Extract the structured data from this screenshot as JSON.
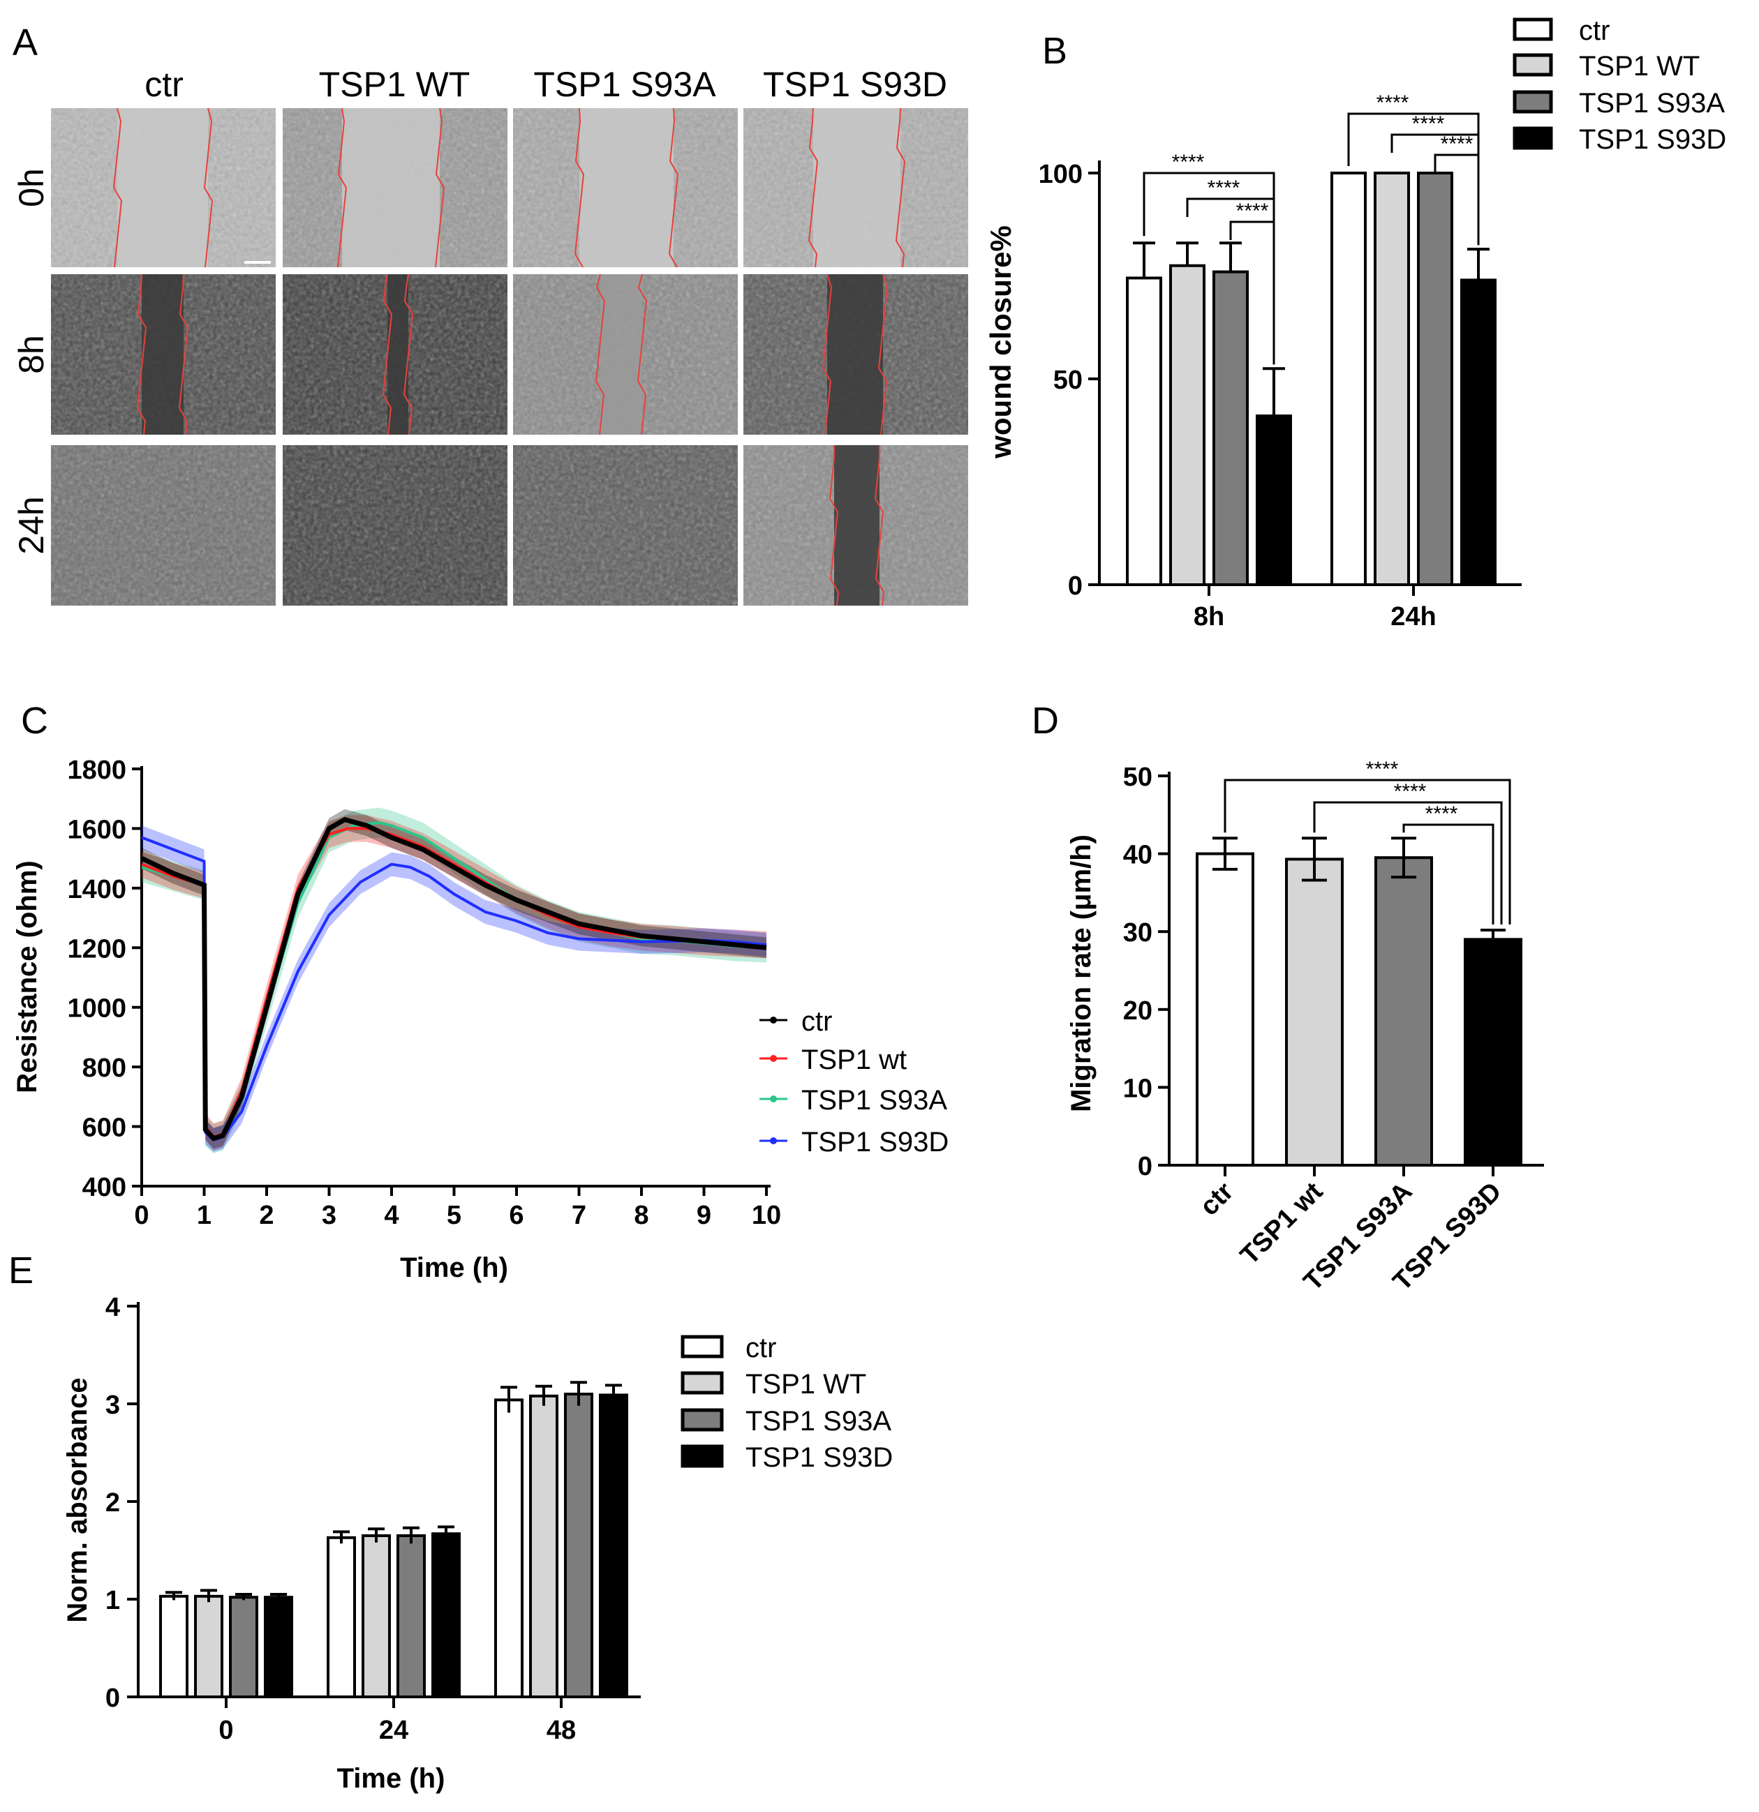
{
  "panels": {
    "A": {
      "letter": "A",
      "columns": [
        "ctr",
        "TSP1 WT",
        "TSP1 S93A",
        "TSP1 S93D"
      ],
      "rows": [
        "0h",
        "8h",
        "24h"
      ]
    },
    "B": {
      "letter": "B",
      "ylabel": "wound closure%",
      "yticks": [
        "0",
        "50",
        "100"
      ],
      "groups": [
        "8h",
        "24h"
      ],
      "legend": [
        "ctr",
        "TSP1 WT",
        "TSP1 S93A",
        "TSP1 S93D"
      ],
      "sig": "****"
    },
    "C": {
      "letter": "C",
      "xlabel": "Time (h)",
      "ylabel": "Resistance (ohm)",
      "yticks": [
        "400",
        "600",
        "800",
        "1000",
        "1200",
        "1400",
        "1600",
        "1800"
      ],
      "xticks": [
        "0",
        "1",
        "2",
        "3",
        "4",
        "5",
        "6",
        "7",
        "8",
        "9",
        "10"
      ],
      "legend": [
        "ctr",
        "TSP1 wt",
        "TSP1 S93A",
        "TSP1 S93D"
      ]
    },
    "D": {
      "letter": "D",
      "ylabel": "Migration rate (μm/h)",
      "yticks": [
        "0",
        "10",
        "20",
        "30",
        "40",
        "50"
      ],
      "categories": [
        "ctr",
        "TSP1 wt",
        "TSP1 S93A",
        "TSP1 S93D"
      ],
      "sig": "****"
    },
    "E": {
      "letter": "E",
      "xlabel": "Time (h)",
      "ylabel": "Norm. absorbance",
      "yticks": [
        "0",
        "1",
        "2",
        "3",
        "4"
      ],
      "groups": [
        "0",
        "24",
        "48"
      ],
      "legend": [
        "ctr",
        "TSP1 WT",
        "TSP1 S93A",
        "TSP1 S93D"
      ]
    }
  },
  "colors": {
    "ctr": "#ffffff",
    "wt": "#d6d6d6",
    "s93a": "#7d7d7d",
    "s93d": "#000000",
    "line_ctr": "#000000",
    "line_wt": "#ff2020",
    "line_s93a": "#2ec58c",
    "line_s93d": "#1f2fff",
    "wound_edge": "#e8413c"
  },
  "chart_data": [
    {
      "id": "B",
      "type": "bar",
      "categories": [
        "8h",
        "24h"
      ],
      "series": [
        {
          "name": "ctr",
          "values": [
            74.5,
            100
          ],
          "errors": [
            8.5,
            0
          ]
        },
        {
          "name": "TSP1 WT",
          "values": [
            77.5,
            100
          ],
          "errors": [
            5.5,
            0
          ]
        },
        {
          "name": "TSP1 S93A",
          "values": [
            76,
            100
          ],
          "errors": [
            7,
            0
          ]
        },
        {
          "name": "TSP1 S93D",
          "values": [
            41,
            74
          ],
          "errors": [
            11.5,
            7.5
          ]
        }
      ],
      "ylabel": "wound closure%",
      "ylim": [
        0,
        100
      ],
      "significance": [
        {
          "group": "8h",
          "from": "ctr",
          "to": "TSP1 S93D",
          "label": "****"
        },
        {
          "group": "8h",
          "from": "TSP1 WT",
          "to": "TSP1 S93D",
          "label": "****"
        },
        {
          "group": "8h",
          "from": "TSP1 S93A",
          "to": "TSP1 S93D",
          "label": "****"
        },
        {
          "group": "24h",
          "from": "ctr",
          "to": "TSP1 S93D",
          "label": "****"
        },
        {
          "group": "24h",
          "from": "TSP1 WT",
          "to": "TSP1 S93D",
          "label": "****"
        },
        {
          "group": "24h",
          "from": "TSP1 S93A",
          "to": "TSP1 S93D",
          "label": "****"
        }
      ]
    },
    {
      "id": "C",
      "type": "line",
      "xlabel": "Time (h)",
      "ylabel": "Resistance (ohm)",
      "xlim": [
        0,
        10
      ],
      "ylim": [
        400,
        1800
      ],
      "series": [
        {
          "name": "ctr",
          "x": [
            0,
            0.5,
            1.0,
            1.02,
            1.15,
            1.3,
            1.6,
            2.0,
            2.5,
            3.0,
            3.25,
            3.6,
            4.0,
            4.5,
            5.0,
            5.5,
            6.0,
            6.5,
            7.0,
            7.5,
            8.0,
            8.5,
            9.0,
            9.5,
            10.0
          ],
          "y": [
            1500,
            1450,
            1410,
            590,
            560,
            570,
            700,
            1000,
            1380,
            1600,
            1630,
            1610,
            1570,
            1530,
            1470,
            1410,
            1360,
            1320,
            1280,
            1260,
            1240,
            1230,
            1220,
            1210,
            1200
          ],
          "band": 35
        },
        {
          "name": "TSP1 wt",
          "x": [
            0,
            0.5,
            1.0,
            1.02,
            1.15,
            1.3,
            1.6,
            2.0,
            2.5,
            3.0,
            3.3,
            3.6,
            4.0,
            4.5,
            5.0,
            5.5,
            6.0,
            6.5,
            7.0,
            7.5,
            8.0,
            8.5,
            9.0,
            9.5,
            10.0
          ],
          "y": [
            1480,
            1440,
            1410,
            600,
            565,
            575,
            720,
            1030,
            1400,
            1580,
            1600,
            1600,
            1580,
            1540,
            1480,
            1420,
            1360,
            1310,
            1270,
            1250,
            1235,
            1228,
            1220,
            1215,
            1210
          ],
          "band": 45
        },
        {
          "name": "TSP1 S93A",
          "x": [
            0,
            0.5,
            1.0,
            1.02,
            1.15,
            1.3,
            1.6,
            2.0,
            2.5,
            3.0,
            3.4,
            3.8,
            4.0,
            4.5,
            5.0,
            5.5,
            6.0,
            6.5,
            7.0,
            7.5,
            8.0,
            8.5,
            9.0,
            9.5,
            10.0
          ],
          "y": [
            1470,
            1440,
            1410,
            585,
            560,
            570,
            700,
            990,
            1350,
            1570,
            1610,
            1620,
            1610,
            1570,
            1500,
            1430,
            1360,
            1310,
            1270,
            1250,
            1230,
            1225,
            1215,
            1205,
            1200
          ],
          "band": 50
        },
        {
          "name": "TSP1 S93D",
          "x": [
            0,
            0.5,
            1.0,
            1.02,
            1.15,
            1.3,
            1.6,
            2.0,
            2.5,
            3.0,
            3.5,
            4.0,
            4.3,
            4.6,
            5.0,
            5.5,
            6.0,
            6.5,
            7.0,
            7.5,
            8.0,
            8.5,
            9.0,
            9.5,
            10.0
          ],
          "y": [
            1570,
            1530,
            1490,
            580,
            555,
            565,
            650,
            870,
            1120,
            1310,
            1420,
            1480,
            1470,
            1440,
            1380,
            1320,
            1290,
            1250,
            1230,
            1225,
            1220,
            1222,
            1225,
            1220,
            1210
          ],
          "band": 40
        }
      ],
      "legend": "right"
    },
    {
      "id": "D",
      "type": "bar",
      "categories": [
        "ctr",
        "TSP1 wt",
        "TSP1 S93A",
        "TSP1 S93D"
      ],
      "values": [
        40,
        39.3,
        39.5,
        29
      ],
      "errors": [
        2,
        2.7,
        2.5,
        1.2
      ],
      "ylabel": "Migration rate (μm/h)",
      "ylim": [
        0,
        50
      ],
      "significance": [
        {
          "from": "ctr",
          "to": "TSP1 S93D",
          "label": "****"
        },
        {
          "from": "TSP1 wt",
          "to": "TSP1 S93D",
          "label": "****"
        },
        {
          "from": "TSP1 S93A",
          "to": "TSP1 S93D",
          "label": "****"
        }
      ]
    },
    {
      "id": "E",
      "type": "bar",
      "categories": [
        "0",
        "24",
        "48"
      ],
      "series": [
        {
          "name": "ctr",
          "values": [
            1.03,
            1.63,
            3.04
          ],
          "errors": [
            0.04,
            0.06,
            0.13
          ]
        },
        {
          "name": "TSP1 WT",
          "values": [
            1.03,
            1.65,
            3.08
          ],
          "errors": [
            0.06,
            0.07,
            0.1
          ]
        },
        {
          "name": "TSP1 S93A",
          "values": [
            1.02,
            1.65,
            3.1
          ],
          "errors": [
            0.03,
            0.08,
            0.12
          ]
        },
        {
          "name": "TSP1 S93D",
          "values": [
            1.02,
            1.67,
            3.09
          ],
          "errors": [
            0.03,
            0.07,
            0.1
          ]
        }
      ],
      "xlabel": "Time (h)",
      "ylabel": "Norm. absorbance",
      "ylim": [
        0,
        4
      ]
    }
  ]
}
